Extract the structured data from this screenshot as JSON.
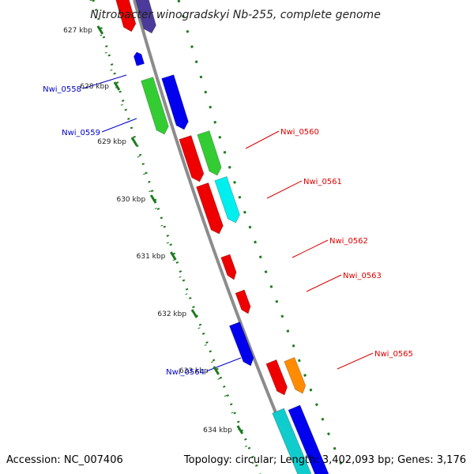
{
  "title": "Nitrobacter winogradskyi Nb-255, complete genome",
  "accession_text": "Accession: NC_007406",
  "summary_text": "Topology: circular; Length: 3,402,093 bp; Genes: 3,176",
  "colors": {
    "backbone": "#8c8c8c",
    "tick_green": "#1e7a1e",
    "label_blue": "#0000cc",
    "label_red": "#dd0000"
  },
  "scale": {
    "unit": "kbp",
    "ticks": [
      "627 kbp",
      "628 kbp",
      "629 kbp",
      "630 kbp",
      "631 kbp",
      "632 kbp",
      "633 kbp",
      "634 kbp"
    ]
  },
  "genes": [
    {
      "id": "g-top-red",
      "label": "",
      "color": "#ee0000"
    },
    {
      "id": "g-top-purple",
      "label": "",
      "color": "#4b3a9a"
    },
    {
      "id": "g-small-blue",
      "label": "",
      "color": "#0000ee"
    },
    {
      "id": "Nwi_0558",
      "label": "Nwi_0558",
      "color": "#33cc33"
    },
    {
      "id": "Nwi_0559",
      "label": "Nwi_0559",
      "color": "#0000ee"
    },
    {
      "id": "g-red-1",
      "label": "",
      "color": "#ee0000"
    },
    {
      "id": "Nwi_0560",
      "label": "Nwi_0560",
      "color": "#33cc33"
    },
    {
      "id": "Nwi_0561",
      "label": "Nwi_0561",
      "color": "#00eeee"
    },
    {
      "id": "g-red-2",
      "label": "",
      "color": "#ee0000"
    },
    {
      "id": "Nwi_0562",
      "label": "Nwi_0562",
      "color": "#ee0000"
    },
    {
      "id": "Nwi_0563",
      "label": "Nwi_0563",
      "color": "#ee0000"
    },
    {
      "id": "Nwi_0564",
      "label": "Nwi_0564",
      "color": "#0000ee"
    },
    {
      "id": "g-red-3",
      "label": "",
      "color": "#ee0000"
    },
    {
      "id": "Nwi_0565",
      "label": "Nwi_0565",
      "color": "#ff8c00"
    },
    {
      "id": "g-bottom-cyan",
      "label": "",
      "color": "#11cccc"
    },
    {
      "id": "g-bottom-blue",
      "label": "",
      "color": "#0000ee"
    }
  ]
}
